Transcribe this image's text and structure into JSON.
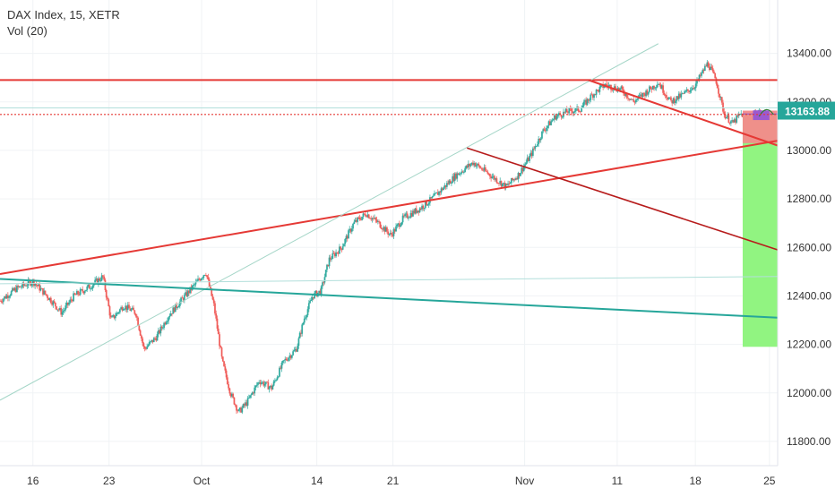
{
  "legend": {
    "symbol_line": "DAX Index, 15, XETR",
    "volume_line": "Vol (20)"
  },
  "chart_data": {
    "type": "candlestick",
    "symbol": "DAX Index",
    "interval": "15",
    "exchange": "XETR",
    "indicator": "Vol (20)",
    "last_price_label": "13163.88",
    "last_price": 13163.88,
    "ylim": [
      11700,
      13620
    ],
    "y_ticks": [
      {
        "value": 11800,
        "label": "11800.00"
      },
      {
        "value": 12000,
        "label": "12000.00"
      },
      {
        "value": 12200,
        "label": "12200.00"
      },
      {
        "value": 12400,
        "label": "12400.00"
      },
      {
        "value": 12600,
        "label": "12600.00"
      },
      {
        "value": 12800,
        "label": "12800.00"
      },
      {
        "value": 13000,
        "label": "13000.00"
      },
      {
        "value": 13200,
        "label": "13200.00"
      },
      {
        "value": 13400,
        "label": "13400.00"
      }
    ],
    "x_ticks": [
      {
        "label": "16",
        "t": 1.6
      },
      {
        "label": "23",
        "t": 5.3
      },
      {
        "label": "Oct",
        "t": 9.8
      },
      {
        "label": "14",
        "t": 15.4
      },
      {
        "label": "21",
        "t": 19.1
      },
      {
        "label": "Nov",
        "t": 25.5
      },
      {
        "label": "11",
        "t": 30.0
      },
      {
        "label": "18",
        "t": 33.8
      },
      {
        "label": "25",
        "t": 37.4
      }
    ],
    "price_path": [
      [
        0,
        12380
      ],
      [
        0.8,
        12430
      ],
      [
        1.6,
        12460
      ],
      [
        2.4,
        12390
      ],
      [
        3.0,
        12330
      ],
      [
        3.6,
        12400
      ],
      [
        4.4,
        12440
      ],
      [
        5.0,
        12480
      ],
      [
        5.4,
        12300
      ],
      [
        6.0,
        12360
      ],
      [
        6.6,
        12330
      ],
      [
        7.0,
        12180
      ],
      [
        7.6,
        12230
      ],
      [
        8.2,
        12320
      ],
      [
        9.0,
        12400
      ],
      [
        9.6,
        12460
      ],
      [
        10.0,
        12500
      ],
      [
        10.4,
        12360
      ],
      [
        10.8,
        12130
      ],
      [
        11.2,
        12000
      ],
      [
        11.6,
        11920
      ],
      [
        12.0,
        11960
      ],
      [
        12.6,
        12050
      ],
      [
        13.2,
        12020
      ],
      [
        13.8,
        12130
      ],
      [
        14.4,
        12180
      ],
      [
        14.8,
        12310
      ],
      [
        15.2,
        12400
      ],
      [
        15.6,
        12420
      ],
      [
        16.0,
        12550
      ],
      [
        16.6,
        12600
      ],
      [
        17.2,
        12700
      ],
      [
        17.8,
        12740
      ],
      [
        18.4,
        12700
      ],
      [
        19.0,
        12650
      ],
      [
        19.6,
        12720
      ],
      [
        20.4,
        12760
      ],
      [
        21.0,
        12800
      ],
      [
        21.6,
        12850
      ],
      [
        22.2,
        12900
      ],
      [
        23.0,
        12950
      ],
      [
        23.8,
        12900
      ],
      [
        24.6,
        12850
      ],
      [
        25.2,
        12900
      ],
      [
        25.8,
        12980
      ],
      [
        26.4,
        13080
      ],
      [
        27.0,
        13140
      ],
      [
        27.6,
        13160
      ],
      [
        28.2,
        13170
      ],
      [
        28.8,
        13230
      ],
      [
        29.4,
        13270
      ],
      [
        30.2,
        13250
      ],
      [
        30.8,
        13200
      ],
      [
        31.4,
        13240
      ],
      [
        32.0,
        13280
      ],
      [
        32.6,
        13200
      ],
      [
        33.2,
        13230
      ],
      [
        33.8,
        13270
      ],
      [
        34.4,
        13360
      ],
      [
        34.8,
        13290
      ],
      [
        35.2,
        13150
      ],
      [
        35.6,
        13110
      ],
      [
        36.0,
        13150
      ],
      [
        36.4,
        13130
      ],
      [
        36.8,
        13150
      ],
      [
        37.0,
        13163.88
      ]
    ],
    "trend_lines": [
      {
        "color": "#e53935",
        "width": 2,
        "t1": 0,
        "p1": 13290,
        "t2": 37.8,
        "p2": 13290
      },
      {
        "color": "#e53935",
        "width": 1.2,
        "dashed": true,
        "t1": 0,
        "p1": 13148,
        "t2": 37.8,
        "p2": 13148
      },
      {
        "color": "#b2dfdb",
        "width": 1,
        "t1": 0,
        "p1": 13175,
        "t2": 37.8,
        "p2": 13175
      },
      {
        "color": "#e53935",
        "width": 2,
        "t1": 0,
        "p1": 12490,
        "t2": 37.8,
        "p2": 13040
      },
      {
        "color": "#a5d6c8",
        "width": 1,
        "t1": 0,
        "p1": 11970,
        "t2": 32.0,
        "p2": 13440
      },
      {
        "color": "#26a69a",
        "width": 2,
        "t1": 0,
        "p1": 12470,
        "t2": 37.8,
        "p2": 12310
      },
      {
        "color": "#b2dfdb",
        "width": 1,
        "t1": 0,
        "p1": 12450,
        "t2": 37.8,
        "p2": 12480
      },
      {
        "color": "#b71c1c",
        "width": 1.6,
        "t1": 22.7,
        "p1": 13010,
        "t2": 37.8,
        "p2": 12590
      },
      {
        "color": "#e53935",
        "width": 2,
        "t1": 28.6,
        "p1": 13290,
        "t2": 37.8,
        "p2": 13020
      }
    ],
    "position_tool": {
      "t_start": 36.1,
      "t_end": 37.8,
      "entry": 13150,
      "stop": 13030,
      "target": 12190
    }
  }
}
